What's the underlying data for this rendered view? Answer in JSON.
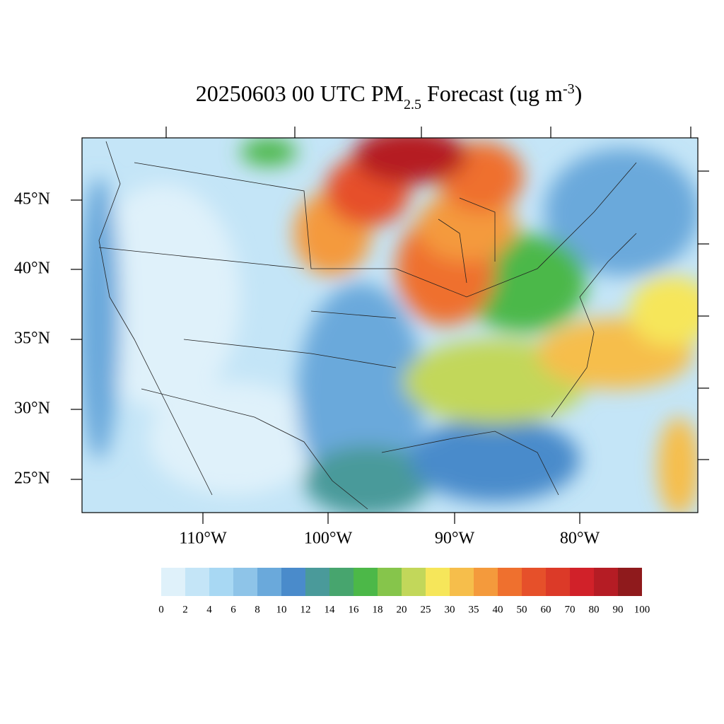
{
  "title": {
    "main": "20250603 00 UTC PM",
    "sub": "2.5",
    "middle": " Forecast (ug m",
    "sup": "-3",
    "end": ")"
  },
  "lat_labels": [
    "45°N",
    "40°N",
    "35°N",
    "30°N",
    "25°N"
  ],
  "lon_labels": [
    "110°W",
    "100°W",
    "90°W",
    "80°W"
  ],
  "colorbar": {
    "labels": [
      "0",
      "2",
      "4",
      "6",
      "8",
      "10",
      "12",
      "14",
      "16",
      "18",
      "20",
      "25",
      "30",
      "35",
      "40",
      "50",
      "60",
      "70",
      "80",
      "90",
      "100"
    ],
    "colors": [
      "#dff1fa",
      "#c4e5f7",
      "#a8d8f3",
      "#8ec4e8",
      "#6aa9db",
      "#4a8bcb",
      "#4a9a9a",
      "#47a56e",
      "#4cb848",
      "#86c54b",
      "#c2d75a",
      "#f6e65a",
      "#f6be4b",
      "#f49a3c",
      "#ef702e",
      "#e6502a",
      "#dc3a28",
      "#d12129",
      "#b51c24",
      "#8f1a1c"
    ]
  }
}
